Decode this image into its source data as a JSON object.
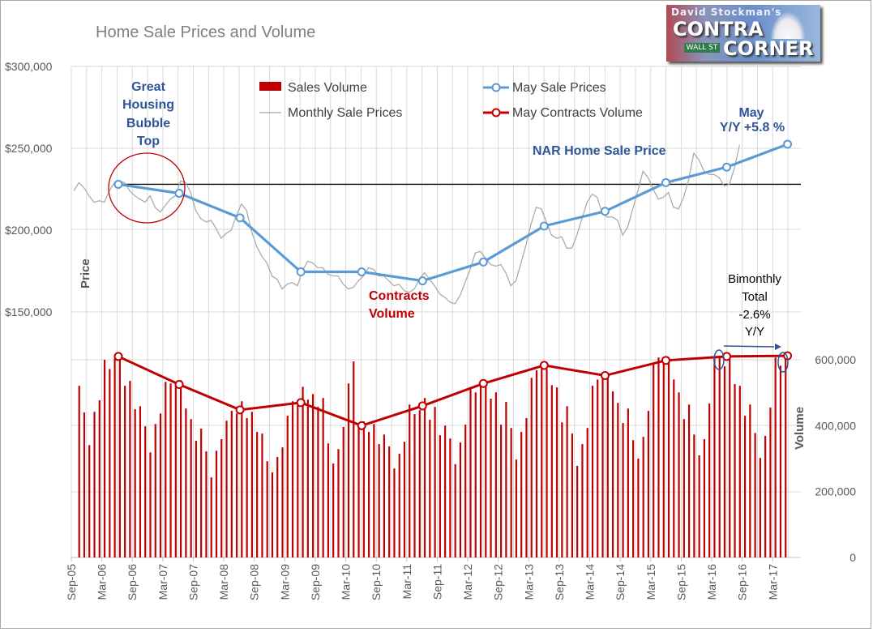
{
  "chart_data": {
    "type": "bar",
    "title": "Home Sale Prices and Volume",
    "legend": [
      "Sales Volume",
      "Monthly Sale Prices",
      "May Sale Prices",
      "May Contracts Volume"
    ],
    "legend_position": "top",
    "y_left": {
      "label": "Price",
      "ticks": [
        "$150,000",
        "$200,000",
        "$250,000",
        "$300,000"
      ],
      "range": [
        150000,
        300000
      ]
    },
    "y_right": {
      "label": "Volume",
      "ticks": [
        "0",
        "200,000",
        "400,000",
        "600,000"
      ],
      "range": [
        0,
        600000
      ]
    },
    "x_ticks": [
      "Sep-05",
      "Mar-06",
      "Sep-06",
      "Mar-07",
      "Sep-07",
      "Mar-08",
      "Sep-08",
      "Mar-09",
      "Sep-09",
      "Mar-10",
      "Sep-10",
      "Mar-11",
      "Sep-11",
      "Mar-12",
      "Sep-12",
      "Mar-13",
      "Sep-13",
      "Mar-14",
      "Sep-14",
      "Mar-15",
      "Sep-15",
      "Mar-16",
      "Sep-16",
      "Mar-17"
    ],
    "reference_line_price": 228000,
    "grid": true,
    "series": [
      {
        "name": "Sales Volume",
        "type": "bar",
        "axis": "right",
        "color": "#c00000",
        "values": [
          521,
          440,
          341,
          442,
          477,
          600,
          572,
          604,
          604,
          521,
          536,
          450,
          459,
          398,
          319,
          405,
          437,
          533,
          528,
          528,
          538,
          452,
          420,
          354,
          391,
          322,
          243,
          324,
          359,
          415,
          445,
          437,
          474,
          423,
          442,
          381,
          376,
          292,
          258,
          305,
          334,
          430,
          474,
          462,
          518,
          479,
          496,
          457,
          484,
          346,
          285,
          329,
          396,
          528,
          595,
          396,
          413,
          381,
          405,
          344,
          373,
          337,
          270,
          315,
          351,
          464,
          435,
          447,
          484,
          418,
          457,
          371,
          400,
          361,
          283,
          349,
          403,
          511,
          501,
          528,
          523,
          482,
          501,
          403,
          472,
          393,
          297,
          381,
          423,
          545,
          568,
          585,
          572,
          523,
          516,
          410,
          459,
          376,
          278,
          344,
          393,
          521,
          540,
          550,
          548,
          504,
          469,
          408,
          452,
          356,
          300,
          366,
          445,
          585,
          607,
          602,
          607,
          540,
          501,
          420,
          464,
          373,
          310,
          359,
          467,
          604,
          607,
          580,
          604,
          526,
          521,
          430,
          464,
          378,
          302,
          369,
          455,
          607,
          582,
          609
        ]
      },
      {
        "name": "Monthly Sale Prices",
        "type": "line",
        "axis": "left",
        "color": "#a6a6a6",
        "values": [
          224,
          229,
          226,
          221,
          217,
          218,
          217,
          224,
          229,
          230,
          229,
          224,
          221,
          219,
          217,
          221,
          214,
          211,
          215,
          219,
          221,
          230,
          229,
          223,
          212,
          207,
          205,
          206,
          201,
          195,
          198,
          200,
          209,
          216,
          212,
          199,
          190,
          184,
          180,
          172,
          170,
          164,
          167,
          168,
          166,
          175,
          181,
          180,
          177,
          177,
          173,
          172,
          172,
          167,
          164,
          165,
          169,
          172,
          177,
          176,
          172,
          172,
          169,
          166,
          167,
          163,
          162,
          164,
          170,
          174,
          170,
          166,
          161,
          159,
          156,
          155,
          160,
          168,
          176,
          186,
          187,
          183,
          179,
          178,
          179,
          174,
          166,
          169,
          180,
          191,
          204,
          214,
          213,
          205,
          197,
          195,
          196,
          189,
          189,
          197,
          207,
          217,
          222,
          220,
          210,
          208,
          208,
          206,
          197,
          202,
          213,
          224,
          236,
          232,
          225,
          219,
          220,
          223,
          214,
          213,
          220,
          231,
          247,
          243,
          236,
          234,
          234,
          232,
          227,
          228,
          238,
          252
        ]
      },
      {
        "name": "May Sale Prices",
        "type": "line",
        "axis": "left",
        "color": "#5b9bd5",
        "x": [
          "May-06",
          "May-07",
          "May-08",
          "May-09",
          "May-10",
          "May-11",
          "May-12",
          "May-13",
          "May-14",
          "May-15",
          "May-16",
          "May-17"
        ],
        "values": [
          228000,
          222500,
          207500,
          174500,
          174500,
          169000,
          180500,
          202500,
          211500,
          229000,
          238500,
          252500
        ]
      },
      {
        "name": "May Contracts Volume",
        "type": "line",
        "axis": "right",
        "color": "#c00000",
        "x": [
          "May-06",
          "May-07",
          "May-08",
          "May-09",
          "May-10",
          "May-11",
          "May-12",
          "May-13",
          "May-14",
          "May-15",
          "May-16",
          "May-17"
        ],
        "values": [
          610000,
          525000,
          448000,
          470000,
          400000,
          460000,
          528000,
          583000,
          552000,
          598000,
          610000,
          612000
        ]
      }
    ],
    "annotations": {
      "bubble_top": [
        "Great",
        "Housing",
        "Bubble",
        "Top"
      ],
      "nar": "NAR Home Sale Price",
      "may": "May",
      "yoy_price": "Y/Y +5.8 %",
      "contracts": [
        "Contracts",
        "Volume"
      ],
      "bimonthly": [
        "Bimonthly",
        "Total",
        "-2.6%",
        "Y/Y"
      ]
    }
  },
  "logo": {
    "line1": "David Stockman's",
    "line2": "CONTRA",
    "line3": "CORNER",
    "sign": "WALL ST"
  }
}
